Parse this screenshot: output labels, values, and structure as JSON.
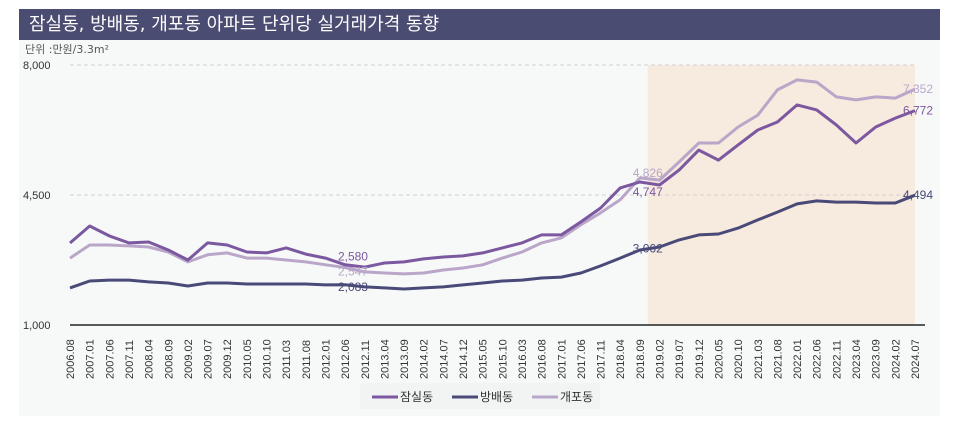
{
  "header": {
    "title": "잠실동, 방배동, 개포동 아파트 단위당 실거래가격 동향"
  },
  "chart_data": {
    "type": "line",
    "title": "잠실동, 방배동, 개포동 아파트 단위당 실거래가격 동향",
    "unit_label": "단위 :만원/3.3m²",
    "ylim": [
      1000,
      8000
    ],
    "yticks": [
      "1,000",
      "4,500",
      "8,000"
    ],
    "ytick_values": [
      1000,
      4500,
      8000
    ],
    "grid": "horizontal dashed",
    "legend_position": "bottom",
    "highlight_range": [
      "2018.11",
      "2024.07"
    ],
    "highlight_color": "#f7eadf",
    "x": [
      "2006.08",
      "2007.01",
      "2007.06",
      "2007.11",
      "2008.04",
      "2008.09",
      "2009.02",
      "2009.07",
      "2009.12",
      "2010.05",
      "2010.10",
      "2011.03",
      "2011.08",
      "2012.01",
      "2012.06",
      "2012.11",
      "2013.04",
      "2013.09",
      "2014.02",
      "2014.07",
      "2014.12",
      "2015.05",
      "2015.10",
      "2016.03",
      "2016.08",
      "2017.01",
      "2017.06",
      "2017.11",
      "2018.04",
      "2018.09",
      "2019.02",
      "2019.07",
      "2019.12",
      "2020.05",
      "2020.10",
      "2021.03",
      "2021.08",
      "2022.01",
      "2022.06",
      "2022.11",
      "2023.04",
      "2023.09",
      "2024.02",
      "2024.07"
    ],
    "series": [
      {
        "name": "잠실동",
        "color": "#7b58a0",
        "values": [
          3208,
          3666,
          3400,
          3210,
          3235,
          3020,
          2750,
          3210,
          3155,
          2966,
          2940,
          3075,
          2910,
          2800,
          2620,
          2560,
          2670,
          2700,
          2780,
          2830,
          2860,
          2940,
          3075,
          3210,
          3425,
          3425,
          3775,
          4150,
          4690,
          4850,
          4770,
          5175,
          5710,
          5440,
          5850,
          6250,
          6465,
          6925,
          6790,
          6385,
          5900,
          6330,
          6570,
          6772
        ]
      },
      {
        "name": "방배동",
        "color": "#4a4a78",
        "values": [
          2000,
          2185,
          2210,
          2210,
          2160,
          2130,
          2050,
          2130,
          2130,
          2105,
          2105,
          2105,
          2105,
          2080,
          2083,
          2025,
          2000,
          1970,
          2000,
          2025,
          2080,
          2130,
          2185,
          2210,
          2265,
          2290,
          2400,
          2590,
          2800,
          3020,
          3100,
          3290,
          3425,
          3450,
          3610,
          3830,
          4040,
          4260,
          4340,
          4310,
          4310,
          4285,
          4285,
          4494
        ]
      },
      {
        "name": "개포동",
        "color": "#b9a6c8",
        "values": [
          2800,
          3155,
          3155,
          3130,
          3100,
          2966,
          2700,
          2890,
          2940,
          2800,
          2800,
          2750,
          2700,
          2620,
          2547,
          2430,
          2400,
          2375,
          2400,
          2480,
          2535,
          2620,
          2800,
          2966,
          3210,
          3345,
          3700,
          4020,
          4370,
          4960,
          4900,
          5390,
          5900,
          5900,
          6330,
          6650,
          7330,
          7600,
          7540,
          7140,
          7060,
          7140,
          7110,
          7352
        ]
      }
    ],
    "annotations": [
      {
        "series": "잠실동",
        "date": "2012.08",
        "text": "2,580",
        "value": 2580
      },
      {
        "series": "개포동",
        "date": "2012.08",
        "text": "2,547",
        "value": 2547
      },
      {
        "series": "방배동",
        "date": "2012.08",
        "text": "2,083",
        "value": 2083
      },
      {
        "series": "개포동",
        "date": "2018.11",
        "text": "4,826",
        "value": 4826
      },
      {
        "series": "잠실동",
        "date": "2018.11",
        "text": "4,747",
        "value": 4747
      },
      {
        "series": "방배동",
        "date": "2018.11",
        "text": "3,062",
        "value": 3062
      },
      {
        "series": "개포동",
        "date": "2024.07",
        "text": "7,352",
        "value": 7352
      },
      {
        "series": "잠실동",
        "date": "2024.07",
        "text": "6,772",
        "value": 6772
      },
      {
        "series": "방배동",
        "date": "2024.07",
        "text": "4,494",
        "value": 4494
      }
    ]
  }
}
